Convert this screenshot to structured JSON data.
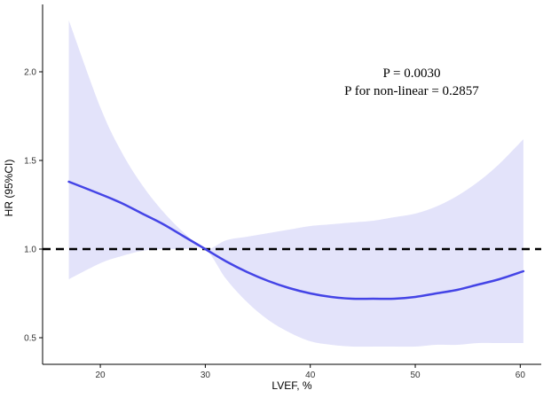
{
  "chart_data": {
    "type": "line",
    "xlabel": "LVEF, %",
    "ylabel": "HR (95%CI)",
    "xlim": [
      14.5,
      62
    ],
    "ylim": [
      0.35,
      2.38
    ],
    "xticks": [
      20,
      30,
      40,
      50,
      60
    ],
    "yticks": [
      0.5,
      1.0,
      1.5,
      2.0
    ],
    "xtick_labels": [
      "20",
      "30",
      "40",
      "50",
      "60"
    ],
    "ytick_labels": [
      "0.5",
      "1.0",
      "1.5",
      "2.0"
    ],
    "reference_line": {
      "y": 1.0,
      "style": "dashed",
      "color": "#000000"
    },
    "annotations": [
      "P = 0.0030",
      "P for non-linear = 0.2857"
    ],
    "grid": false,
    "colors": {
      "line": "#4444e6",
      "band": "#e3e3fa"
    },
    "series": [
      {
        "x": [
          17,
          20,
          22,
          24,
          26,
          28,
          30,
          32,
          34,
          36,
          38,
          40,
          42,
          44,
          46,
          48,
          50,
          52,
          54,
          56,
          58,
          60.3
        ],
        "y": [
          1.38,
          1.31,
          1.26,
          1.2,
          1.14,
          1.07,
          1.0,
          0.93,
          0.87,
          0.82,
          0.78,
          0.75,
          0.73,
          0.72,
          0.72,
          0.72,
          0.73,
          0.75,
          0.77,
          0.8,
          0.83,
          0.875
        ],
        "lower": [
          0.83,
          0.92,
          0.96,
          0.99,
          1.0,
          1.0,
          1.0,
          0.83,
          0.7,
          0.6,
          0.53,
          0.48,
          0.46,
          0.45,
          0.45,
          0.45,
          0.45,
          0.46,
          0.46,
          0.47,
          0.47,
          0.47
        ],
        "upper": [
          2.29,
          1.8,
          1.55,
          1.36,
          1.21,
          1.09,
          1.0,
          1.05,
          1.07,
          1.09,
          1.11,
          1.13,
          1.14,
          1.15,
          1.16,
          1.18,
          1.2,
          1.24,
          1.3,
          1.38,
          1.48,
          1.62
        ]
      }
    ]
  }
}
